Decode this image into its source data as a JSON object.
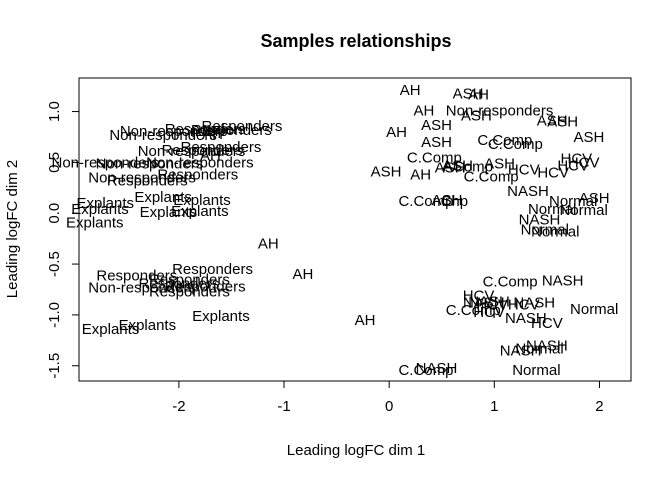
{
  "chart_data": {
    "type": "scatter",
    "title": "Samples relationships",
    "xlabel": "Leading logFC dim 1",
    "ylabel": "Leading logFC dim 2",
    "xlim": [
      -2.95,
      2.3
    ],
    "ylim": [
      -1.65,
      1.33
    ],
    "xticks": [
      -2,
      -1,
      0,
      1,
      2
    ],
    "yticks": [
      -1.5,
      -1.0,
      -0.5,
      0.0,
      0.5,
      1.0
    ],
    "grid": false,
    "legend": "none",
    "points": [
      {
        "x": 0.2,
        "y": 1.21,
        "label": "AH"
      },
      {
        "x": 0.75,
        "y": 1.18,
        "label": "ASH"
      },
      {
        "x": 0.85,
        "y": 1.17,
        "label": "AH"
      },
      {
        "x": 0.33,
        "y": 1.01,
        "label": "AH"
      },
      {
        "x": 0.83,
        "y": 0.96,
        "label": "ASH"
      },
      {
        "x": 1.05,
        "y": 1.01,
        "label": "Non-responders"
      },
      {
        "x": 1.55,
        "y": 0.91,
        "label": "ASH"
      },
      {
        "x": 1.65,
        "y": 0.9,
        "label": "ASH"
      },
      {
        "x": 0.45,
        "y": 0.87,
        "label": "ASH"
      },
      {
        "x": 0.07,
        "y": 0.8,
        "label": "AH"
      },
      {
        "x": 1.9,
        "y": 0.75,
        "label": "ASH"
      },
      {
        "x": 1.1,
        "y": 0.72,
        "label": "C.Comp"
      },
      {
        "x": 1.2,
        "y": 0.68,
        "label": "C.Comp"
      },
      {
        "x": 0.45,
        "y": 0.7,
        "label": "ASH"
      },
      {
        "x": 0.43,
        "y": 0.55,
        "label": "C.Comp"
      },
      {
        "x": 1.78,
        "y": 0.54,
        "label": "HCV"
      },
      {
        "x": 1.85,
        "y": 0.5,
        "label": "HCV"
      },
      {
        "x": 1.75,
        "y": 0.47,
        "label": "HCV"
      },
      {
        "x": 1.05,
        "y": 0.49,
        "label": "ASH"
      },
      {
        "x": 0.65,
        "y": 0.47,
        "label": "ASH"
      },
      {
        "x": 0.75,
        "y": 0.46,
        "label": "AComp"
      },
      {
        "x": 0.58,
        "y": 0.45,
        "label": "ASH"
      },
      {
        "x": 1.28,
        "y": 0.43,
        "label": "HCV"
      },
      {
        "x": 1.56,
        "y": 0.4,
        "label": "HCV"
      },
      {
        "x": -0.03,
        "y": 0.41,
        "label": "ASH"
      },
      {
        "x": 0.3,
        "y": 0.38,
        "label": "AH"
      },
      {
        "x": 0.97,
        "y": 0.36,
        "label": "C.Comp"
      },
      {
        "x": 1.32,
        "y": 0.22,
        "label": "NASH"
      },
      {
        "x": 1.95,
        "y": 0.15,
        "label": "ASH"
      },
      {
        "x": 1.75,
        "y": 0.12,
        "label": "Normal"
      },
      {
        "x": 0.35,
        "y": 0.12,
        "label": "C.Comp"
      },
      {
        "x": 0.55,
        "y": 0.13,
        "label": "ASH"
      },
      {
        "x": 0.62,
        "y": 0.12,
        "label": "Chp"
      },
      {
        "x": 1.55,
        "y": 0.04,
        "label": "Normal"
      },
      {
        "x": 1.85,
        "y": 0.03,
        "label": "Normal"
      },
      {
        "x": 1.43,
        "y": -0.06,
        "label": "NASH"
      },
      {
        "x": 1.48,
        "y": -0.16,
        "label": "Normal"
      },
      {
        "x": 1.58,
        "y": -0.18,
        "label": "Normal"
      },
      {
        "x": -1.4,
        "y": 0.86,
        "label": "Responders"
      },
      {
        "x": -1.75,
        "y": 0.83,
        "label": "Responders"
      },
      {
        "x": -1.5,
        "y": 0.82,
        "label": "Responders"
      },
      {
        "x": -2.05,
        "y": 0.81,
        "label": "Non-responders"
      },
      {
        "x": -1.68,
        "y": 0.78,
        "label": "AH"
      },
      {
        "x": -2.15,
        "y": 0.77,
        "label": "Non-responders"
      },
      {
        "x": -1.6,
        "y": 0.65,
        "label": "Responders"
      },
      {
        "x": -1.78,
        "y": 0.62,
        "label": "Responders"
      },
      {
        "x": -1.88,
        "y": 0.61,
        "label": "Non-responders"
      },
      {
        "x": -1.7,
        "y": 0.57,
        "label": "AH"
      },
      {
        "x": -2.7,
        "y": 0.5,
        "label": "Non-responders"
      },
      {
        "x": -1.8,
        "y": 0.5,
        "label": "Non-responders"
      },
      {
        "x": -2.28,
        "y": 0.49,
        "label": "Non-responders"
      },
      {
        "x": -1.82,
        "y": 0.38,
        "label": "Responders"
      },
      {
        "x": -2.35,
        "y": 0.35,
        "label": "Non-responders"
      },
      {
        "x": -2.3,
        "y": 0.32,
        "label": "Responders"
      },
      {
        "x": -2.15,
        "y": 0.16,
        "label": "Explants"
      },
      {
        "x": -1.78,
        "y": 0.13,
        "label": "Explants"
      },
      {
        "x": -2.7,
        "y": 0.1,
        "label": "Explants"
      },
      {
        "x": -2.75,
        "y": 0.04,
        "label": "Explants"
      },
      {
        "x": -2.1,
        "y": 0.01,
        "label": "Explants"
      },
      {
        "x": -1.8,
        "y": 0.02,
        "label": "Explants"
      },
      {
        "x": -2.8,
        "y": -0.09,
        "label": "Explants"
      },
      {
        "x": -1.15,
        "y": -0.3,
        "label": "AH"
      },
      {
        "x": -1.68,
        "y": -0.55,
        "label": "Responders"
      },
      {
        "x": -2.4,
        "y": -0.61,
        "label": "Responders"
      },
      {
        "x": -0.82,
        "y": -0.6,
        "label": "AH"
      },
      {
        "x": -1.9,
        "y": -0.65,
        "label": "Responders"
      },
      {
        "x": -2.0,
        "y": -0.69,
        "label": "Responders"
      },
      {
        "x": -1.75,
        "y": -0.72,
        "label": "Responders"
      },
      {
        "x": -2.35,
        "y": -0.73,
        "label": "Non-responders"
      },
      {
        "x": -1.9,
        "y": -0.77,
        "label": "Responders"
      },
      {
        "x": -1.6,
        "y": -1.01,
        "label": "Explants"
      },
      {
        "x": -2.3,
        "y": -1.1,
        "label": "Explants"
      },
      {
        "x": -2.65,
        "y": -1.14,
        "label": "Explants"
      },
      {
        "x": -0.23,
        "y": -1.05,
        "label": "AH"
      },
      {
        "x": 1.15,
        "y": -0.67,
        "label": "C.Comp"
      },
      {
        "x": 1.65,
        "y": -0.66,
        "label": "NASH"
      },
      {
        "x": 0.85,
        "y": -0.81,
        "label": "HCV"
      },
      {
        "x": 0.95,
        "y": -0.87,
        "label": "NASH"
      },
      {
        "x": 0.9,
        "y": -0.88,
        "label": "NASH"
      },
      {
        "x": 1.38,
        "y": -0.88,
        "label": "NASH"
      },
      {
        "x": 1.28,
        "y": -0.9,
        "label": "HCV"
      },
      {
        "x": 0.98,
        "y": -0.9,
        "label": "HCV"
      },
      {
        "x": 0.8,
        "y": -0.95,
        "label": "C.Comp"
      },
      {
        "x": 0.95,
        "y": -0.97,
        "label": "HCV"
      },
      {
        "x": 1.95,
        "y": -0.94,
        "label": "Normal"
      },
      {
        "x": 1.3,
        "y": -1.03,
        "label": "NASH"
      },
      {
        "x": 1.5,
        "y": -1.08,
        "label": "HCV"
      },
      {
        "x": 1.5,
        "y": -1.3,
        "label": "NASH"
      },
      {
        "x": 1.43,
        "y": -1.33,
        "label": "Normal"
      },
      {
        "x": 1.25,
        "y": -1.35,
        "label": "NASH"
      },
      {
        "x": 0.45,
        "y": -1.52,
        "label": "NASH"
      },
      {
        "x": 0.35,
        "y": -1.54,
        "label": "C.Comp"
      },
      {
        "x": 1.4,
        "y": -1.54,
        "label": "Normal"
      }
    ]
  }
}
